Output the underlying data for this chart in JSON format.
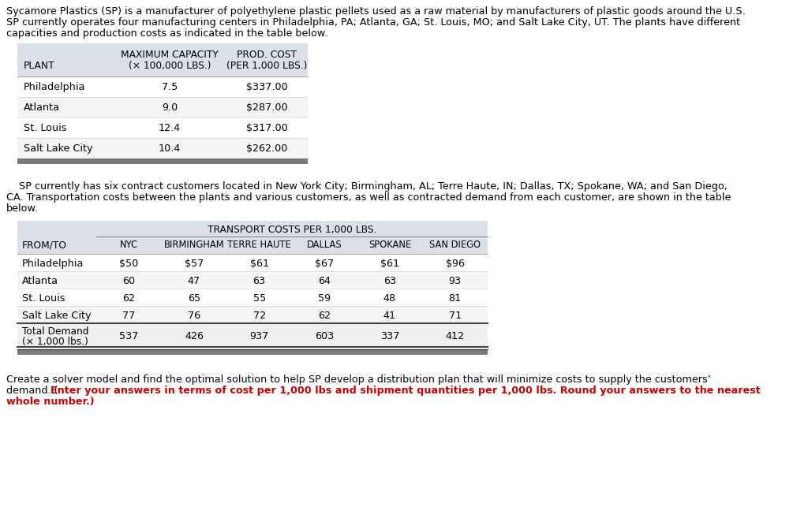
{
  "intro_text_1": "Sycamore Plastics (SP) is a manufacturer of polyethylene plastic pellets used as a raw material by manufacturers of plastic goods around the U.S.",
  "intro_text_2": "SP currently operates four manufacturing centers in Philadelphia, PA; Atlanta, GA; St. Louis, MO; and Salt Lake City, UT. The plants have different",
  "intro_text_3": "capacities and production costs as indicated in the table below.",
  "table1_header_col1": "PLANT",
  "table1_header_col2_line1": "MAXIMUM CAPACITY",
  "table1_header_col2_line2": "(× 100,000 LBS.)",
  "table1_header_col3_line1": "PROD. COST",
  "table1_header_col3_line2": "(PER 1,000 LBS.)",
  "table1_plants": [
    "Philadelphia",
    "Atlanta",
    "St. Louis",
    "Salt Lake City"
  ],
  "table1_capacity": [
    "7.5",
    "9.0",
    "12.4",
    "10.4"
  ],
  "table1_cost": [
    "$337.00",
    "$287.00",
    "$317.00",
    "$262.00"
  ],
  "middle_text_1": "    SP currently has six contract customers located in New York City; Birmingham, AL; Terre Haute, IN; Dallas, TX; Spokane, WA; and San Diego,",
  "middle_text_2": "CA. Transportation costs between the plants and various customers, as well as contracted demand from each customer, are shown in the table",
  "middle_text_3": "below.",
  "table2_spanning_header": "TRANSPORT COSTS PER 1,000 LBS.",
  "table2_header_from_to": "FROM/TO",
  "table2_columns": [
    "NYC",
    "BIRMINGHAM",
    "TERRE HAUTE",
    "DALLAS",
    "SPOKANE",
    "SAN DIEGO"
  ],
  "table2_plants": [
    "Philadelphia",
    "Atlanta",
    "St. Louis",
    "Salt Lake City"
  ],
  "table2_data": [
    [
      "$50",
      "$57",
      "$61",
      "$67",
      "$61",
      "$96"
    ],
    [
      "60",
      "47",
      "63",
      "64",
      "63",
      "93"
    ],
    [
      "62",
      "65",
      "55",
      "59",
      "48",
      "81"
    ],
    [
      "77",
      "76",
      "72",
      "62",
      "41",
      "71"
    ]
  ],
  "table2_demand_label_1": "Total Demand",
  "table2_demand_label_2": "(× 1,000 lbs.)",
  "table2_demand": [
    "537",
    "426",
    "937",
    "603",
    "337",
    "412"
  ],
  "footer_text_1": "Create a solver model and find the optimal solution to help SP develop a distribution plan that will minimize costs to supply the customers’",
  "footer_text_2_normal": "demand. (",
  "footer_text_2_bold": "Enter your answers in terms of cost per 1,000 lbs and shipment quantities per 1,000 lbs. Round your answers to the nearest",
  "footer_text_3_bold": "whole number.)",
  "bg_color": "#ffffff",
  "table_header_bg": "#dce0e8",
  "table_bottom_bar_color": "#7a7a7a",
  "text_color": "#000000",
  "bold_red_color": "#cc0000",
  "font_size": 9.2,
  "header_font_size": 8.8
}
